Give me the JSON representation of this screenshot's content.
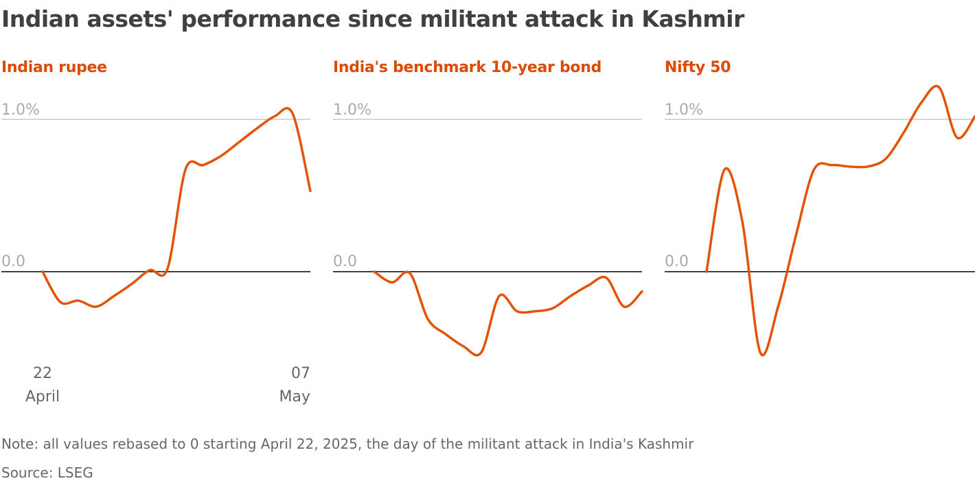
{
  "title": "Indian assets' performance since militant attack in Kashmir",
  "note": "Note: all values rebased to 0 starting April 22, 2025, the day of the militant attack in India's Kashmir",
  "source": "Source: LSEG",
  "line_color": "#e35205",
  "chart_data": [
    {
      "type": "line",
      "title": "Indian rupee",
      "x": [
        "2025-04-22",
        "2025-04-23",
        "2025-04-24",
        "2025-04-25",
        "2025-04-26",
        "2025-04-27",
        "2025-04-28",
        "2025-04-29",
        "2025-04-30",
        "2025-05-01",
        "2025-05-02",
        "2025-05-03",
        "2025-05-04",
        "2025-05-05",
        "2025-05-06",
        "2025-05-07"
      ],
      "values": [
        0,
        -0.2,
        -0.19,
        -0.23,
        -0.16,
        -0.08,
        0.01,
        0.02,
        0.67,
        0.7,
        0.76,
        0.85,
        0.94,
        1.02,
        1.04,
        0.53
      ],
      "ylim": [
        -0.6,
        1.25
      ],
      "yticks": [
        "0.0",
        "1.0%"
      ],
      "xtick_labels": [
        {
          "day": "22",
          "month": "April"
        },
        {
          "day": "07",
          "month": "May"
        }
      ],
      "grid": true
    },
    {
      "type": "line",
      "title": "India's benchmark 10-year bond",
      "x": [
        "2025-04-22",
        "2025-04-23",
        "2025-04-24",
        "2025-04-25",
        "2025-04-26",
        "2025-04-27",
        "2025-04-28",
        "2025-04-29",
        "2025-04-30",
        "2025-05-01",
        "2025-05-02",
        "2025-05-03",
        "2025-05-04",
        "2025-05-05",
        "2025-05-06",
        "2025-05-07"
      ],
      "values": [
        0,
        -0.07,
        -0.01,
        -0.31,
        -0.41,
        -0.49,
        -0.53,
        -0.16,
        -0.26,
        -0.26,
        -0.24,
        -0.16,
        -0.09,
        -0.04,
        -0.23,
        -0.13
      ],
      "ylim": [
        -0.6,
        1.25
      ],
      "yticks": [
        "0.0",
        "1.0%"
      ],
      "grid": true
    },
    {
      "type": "line",
      "title": "Nifty 50",
      "x": [
        "2025-04-22",
        "2025-04-23",
        "2025-04-24",
        "2025-04-25",
        "2025-04-26",
        "2025-04-27",
        "2025-04-28",
        "2025-04-29",
        "2025-04-30",
        "2025-05-01",
        "2025-05-02",
        "2025-05-03",
        "2025-05-04",
        "2025-05-05",
        "2025-05-06",
        "2025-05-07"
      ],
      "values": [
        0,
        0.67,
        0.33,
        -0.53,
        -0.23,
        0.24,
        0.67,
        0.7,
        0.69,
        0.69,
        0.74,
        0.91,
        1.11,
        1.21,
        0.88,
        1.02
      ],
      "ylim": [
        -0.6,
        1.25
      ],
      "yticks": [
        "0.0",
        "1.0%"
      ],
      "grid": true
    }
  ]
}
